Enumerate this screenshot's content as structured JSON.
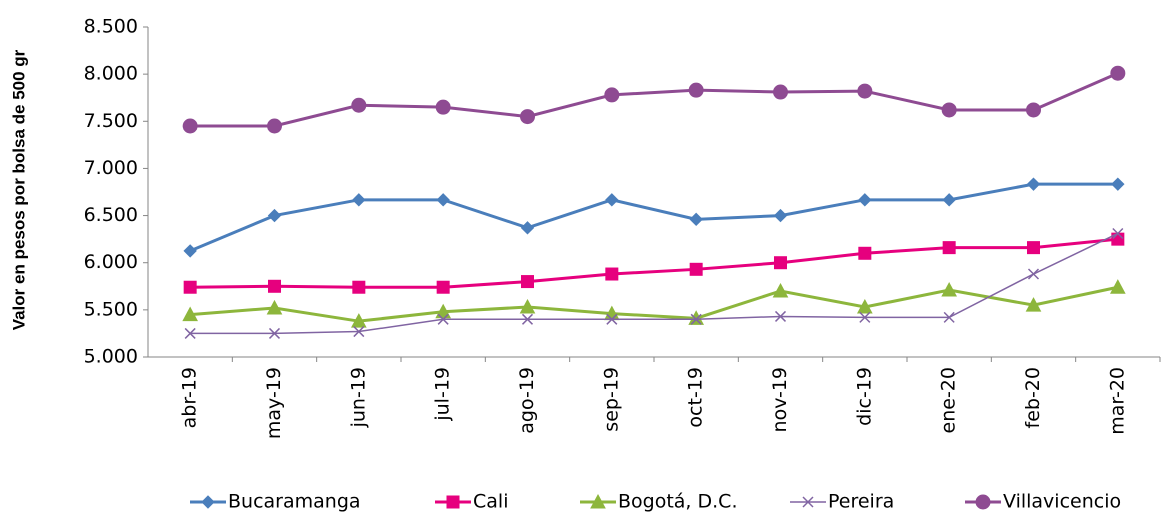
{
  "chart_data": {
    "type": "line",
    "y_label": "Valor en pesos por bolsa de 500 gr",
    "categories": [
      "abr-19",
      "may-19",
      "jun-19",
      "jul-19",
      "ago-19",
      "sep-19",
      "oct-19",
      "nov-19",
      "dic-19",
      "ene-20",
      "feb-20",
      "mar-20"
    ],
    "series": [
      {
        "name": "Bucaramanga",
        "color": "#4a7ebb",
        "marker": "diamond",
        "values": [
          6125,
          6500,
          6667,
          6667,
          6370,
          6667,
          6460,
          6500,
          6667,
          6667,
          6833,
          6833
        ]
      },
      {
        "name": "Cali",
        "color": "#e6007e",
        "marker": "square",
        "values": [
          5740,
          5750,
          5740,
          5740,
          5800,
          5880,
          5930,
          6000,
          6100,
          6160,
          6160,
          6250
        ]
      },
      {
        "name": "Bogotá, D.C.",
        "color": "#8db63c",
        "marker": "triangle",
        "values": [
          5450,
          5520,
          5380,
          5480,
          5530,
          5460,
          5410,
          5700,
          5530,
          5710,
          5550,
          5740
        ]
      },
      {
        "name": "Pereira",
        "color": "#8064a2",
        "marker": "x",
        "values": [
          5250,
          5250,
          5270,
          5400,
          5400,
          5400,
          5400,
          5430,
          5420,
          5420,
          5880,
          6310
        ]
      },
      {
        "name": "Villavicencio",
        "color": "#8e4b92",
        "marker": "circle",
        "values": [
          7450,
          7450,
          7670,
          7650,
          7550,
          7780,
          7830,
          7810,
          7820,
          7620,
          7620,
          8010
        ]
      }
    ],
    "ylim": [
      5000,
      8500
    ],
    "yticks": [
      {
        "value": 5000,
        "label": "5.000"
      },
      {
        "value": 5500,
        "label": "5.500"
      },
      {
        "value": 6000,
        "label": "6.000"
      },
      {
        "value": 6500,
        "label": "6.500"
      },
      {
        "value": 7000,
        "label": "7.000"
      },
      {
        "value": 7500,
        "label": "7.500"
      },
      {
        "value": 8000,
        "label": "8.000"
      },
      {
        "value": 8500,
        "label": "8.500"
      }
    ],
    "grid": false,
    "legend": "bottom"
  }
}
